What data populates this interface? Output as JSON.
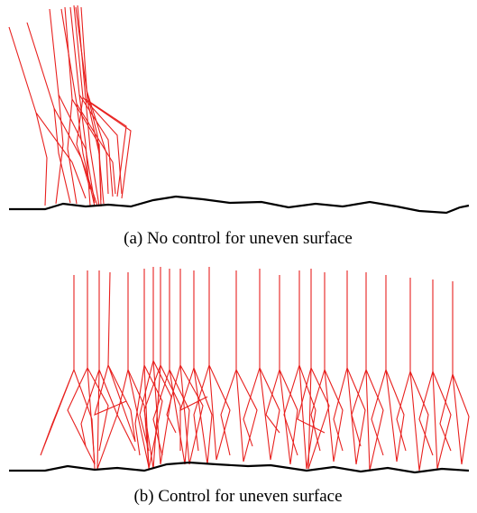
{
  "figure_a": {
    "caption": "(a) No control for uneven surface"
  },
  "figure_b": {
    "caption": "(b) Control for uneven surface"
  }
}
